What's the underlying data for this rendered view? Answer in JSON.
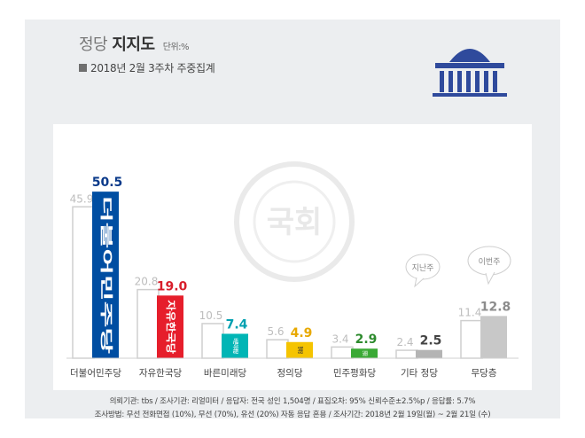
{
  "header": {
    "title_prefix": "정당",
    "title_bold": "지지도",
    "unit": "단위:%",
    "period": "2018년 2월 3주차 주중집계"
  },
  "watermark": "국회",
  "bubbles": {
    "prev": "지난주",
    "curr": "이번주"
  },
  "chart_data": {
    "type": "bar",
    "title": "정당 지지도",
    "ylabel": "단위:%",
    "categories": [
      "더불어민주당",
      "자유한국당",
      "바른미래당",
      "정의당",
      "민주평화당",
      "기타 정당",
      "무당층"
    ],
    "series": [
      {
        "name": "지난주",
        "values": [
          45.9,
          20.8,
          10.5,
          5.6,
          3.4,
          2.4,
          11.4
        ]
      },
      {
        "name": "이번주",
        "values": [
          50.5,
          19.0,
          7.4,
          4.9,
          2.9,
          2.5,
          12.8
        ]
      }
    ],
    "series_colors": [
      "#ffffff",
      "#004ea2",
      "#e61e2b",
      "#00b5b5",
      "#f5c400",
      "#3aa935",
      "#b4b4b4",
      "#c8c8c8"
    ],
    "value_label_colors": [
      "#bdbdbd",
      "#0b3a8a",
      "#d81e2b",
      "#00a0b0",
      "#e8a900",
      "#2e8b2e",
      "#444444",
      "#8c8c8c"
    ],
    "bar_logos": [
      "더불어민주당",
      "자유한국당",
      "바른미래당",
      "정의당",
      "민주평화당"
    ],
    "ylim": [
      0,
      55
    ]
  },
  "footer": {
    "line1": "의뢰기관: tbs / 조사기관: 리얼미터 / 응답자: 전국 성인 1,504명 / 표집오차: 95% 신뢰수준±2.5%p / 응답률: 5.7%",
    "line2": "조사방법: 무선 전화면접 (10%), 무선 (70%), 유선 (20%) 자동 응답 혼용 / 조사기간: 2018년 2월 19일(월) ~ 2월 21일 (수)"
  }
}
